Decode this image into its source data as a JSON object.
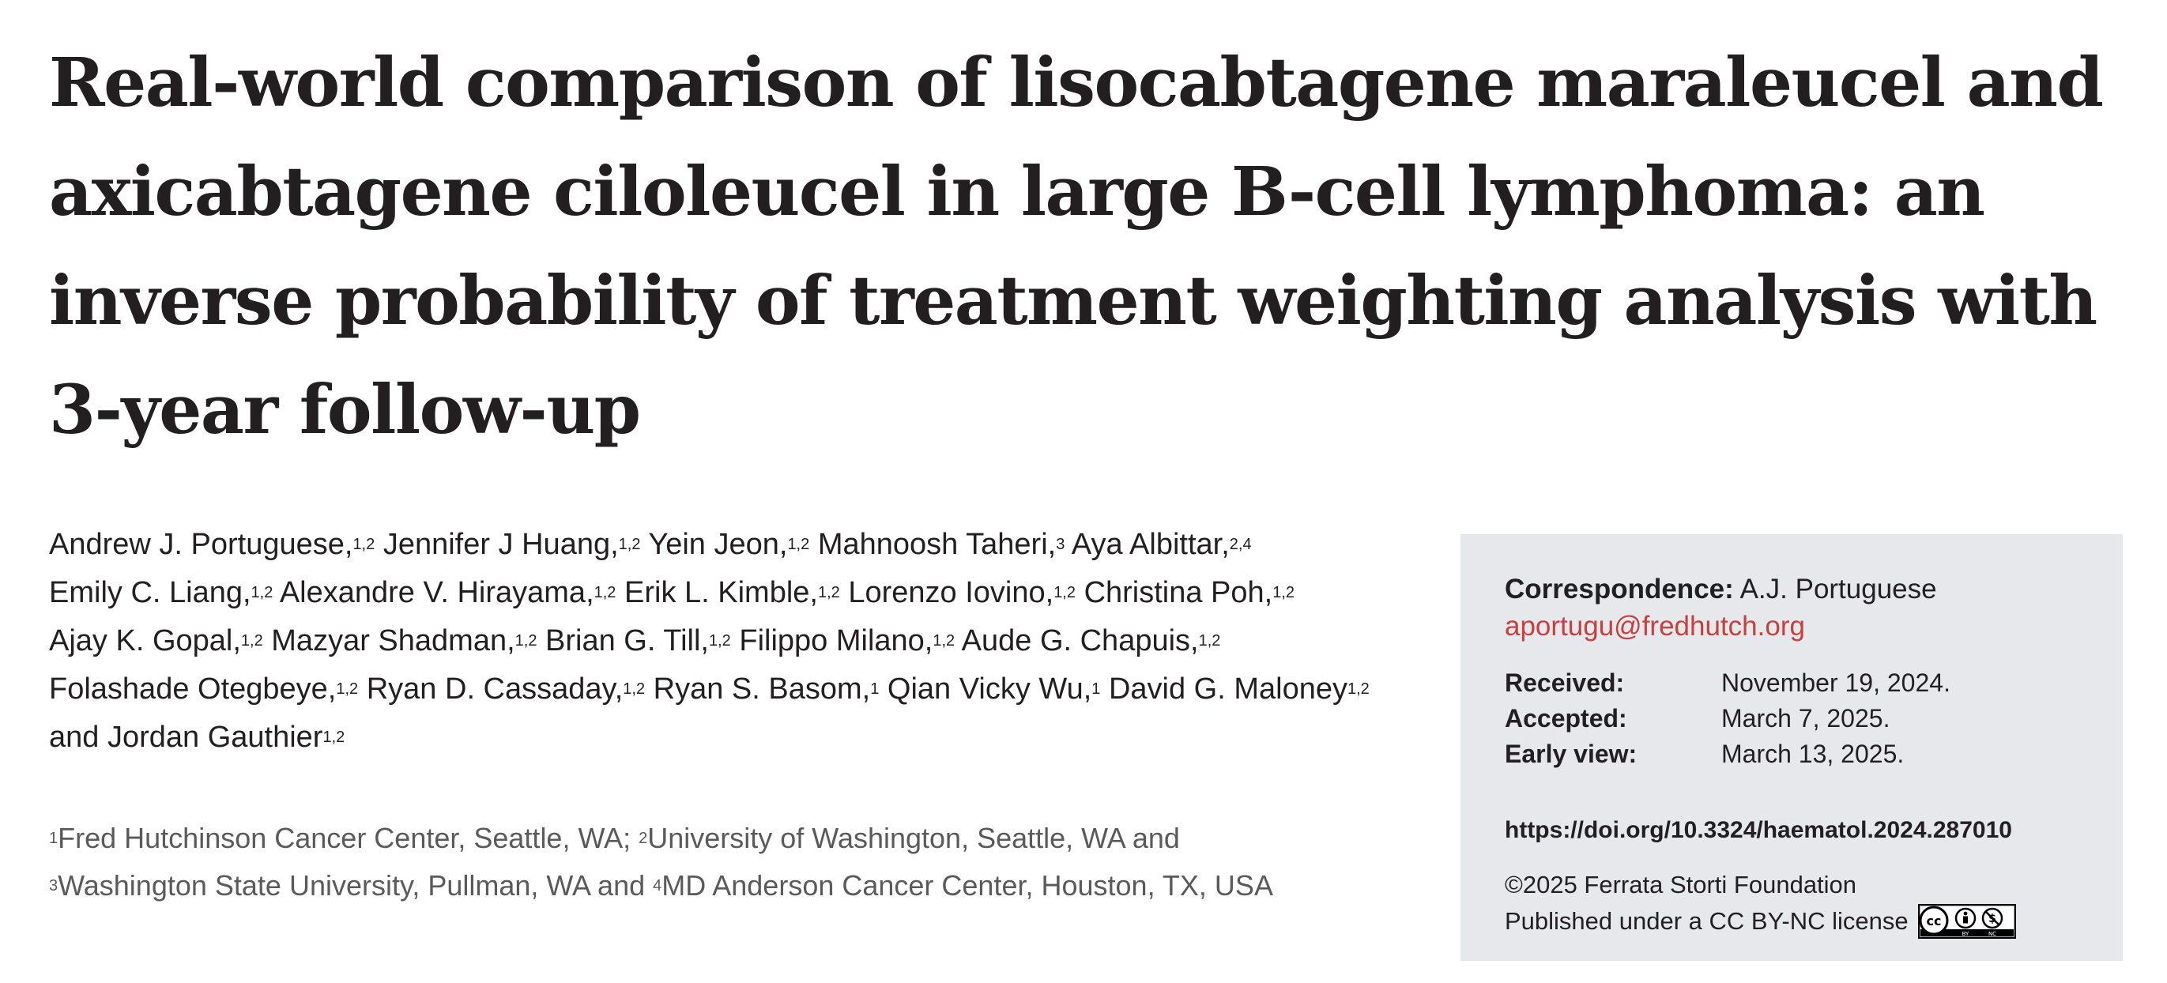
{
  "title": "Real-world comparison of lisocabtagene maraleucel and axicabtagene ciloleucel in large B-cell lymphoma: an inverse probability of treatment weighting analysis with 3-year follow-up",
  "authors": [
    {
      "name": "Andrew J. Portuguese,",
      "aff": "1,2"
    },
    {
      "name": "Jennifer J Huang,",
      "aff": "1,2"
    },
    {
      "name": "Yein Jeon,",
      "aff": "1,2"
    },
    {
      "name": "Mahnoosh Taheri,",
      "aff": "3"
    },
    {
      "name": "Aya Albittar,",
      "aff": "2,4"
    },
    {
      "name": "Emily C. Liang,",
      "aff": "1,2"
    },
    {
      "name": "Alexandre V. Hirayama,",
      "aff": "1,2"
    },
    {
      "name": "Erik L. Kimble,",
      "aff": "1,2"
    },
    {
      "name": "Lorenzo Iovino,",
      "aff": "1,2"
    },
    {
      "name": "Christina Poh,",
      "aff": "1,2"
    },
    {
      "name": "Ajay K. Gopal,",
      "aff": "1,2"
    },
    {
      "name": "Mazyar Shadman,",
      "aff": "1,2"
    },
    {
      "name": "Brian G. Till,",
      "aff": "1,2"
    },
    {
      "name": "Filippo Milano,",
      "aff": "1,2"
    },
    {
      "name": "Aude G. Chapuis,",
      "aff": "1,2"
    },
    {
      "name": "Folashade Otegbeye,",
      "aff": "1,2"
    },
    {
      "name": "Ryan D. Cassaday,",
      "aff": "1,2"
    },
    {
      "name": "Ryan S. Basom,",
      "aff": "1"
    },
    {
      "name": "Qian Vicky Wu,",
      "aff": "1"
    },
    {
      "name": "David G. Maloney",
      "aff": "1,2"
    },
    {
      "name": "and Jordan Gauthier",
      "aff": "1,2"
    }
  ],
  "author_lines": [
    [
      0,
      1,
      2,
      3,
      4
    ],
    [
      5,
      6,
      7,
      8,
      9
    ],
    [
      10,
      11,
      12,
      13,
      14
    ],
    [
      15,
      16,
      17,
      18,
      19
    ],
    [
      20
    ]
  ],
  "affiliations": [
    {
      "num": "1",
      "text": "Fred Hutchinson Cancer Center, Seattle, WA; "
    },
    {
      "num": "2",
      "text": "University of Washington, Seattle, WA and"
    },
    {
      "num": "3",
      "text": "Washington State University, Pullman, WA and "
    },
    {
      "num": "4",
      "text": "MD Anderson Cancer Center, Houston, TX, USA"
    }
  ],
  "affiliation_lines": [
    [
      0,
      1
    ],
    [
      2,
      3
    ]
  ],
  "infobox": {
    "correspondence_label": "Correspondence:",
    "correspondence_name": "A.J. Portuguese",
    "email": "aportugu@fredhutch.org",
    "dates": [
      {
        "label": "Received:",
        "value": "November 19, 2024."
      },
      {
        "label": "Accepted:",
        "value": "March 7, 2025."
      },
      {
        "label": "Early view:",
        "value": "March 13, 2025."
      }
    ],
    "doi": "https://doi.org/10.3324/haematol.2024.287010",
    "copyright": "©2025 Ferrata Storti Foundation",
    "license": "Published under a CC BY-NC license",
    "license_badge_icon": "cc-by-nc-icon",
    "background_color": "#e6e8ec",
    "email_color": "#c6403f"
  }
}
